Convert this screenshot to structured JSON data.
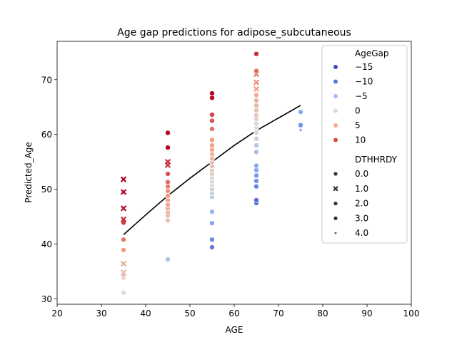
{
  "chart_data": {
    "type": "scatter",
    "title": "Age gap predictions for adipose_subcutaneous",
    "xlabel": "AGE",
    "ylabel": "Predicted_Age",
    "xlim": [
      20,
      100
    ],
    "ylim": [
      29,
      77
    ],
    "xticks": [
      "20",
      "30",
      "40",
      "50",
      "60",
      "70",
      "80",
      "90",
      "100"
    ],
    "yticks": [
      "30",
      "40",
      "50",
      "60",
      "70"
    ],
    "xtick_values": [
      20,
      30,
      40,
      50,
      60,
      70,
      80,
      90,
      100
    ],
    "ytick_values": [
      30,
      40,
      50,
      60,
      70
    ],
    "grid": false,
    "hue_variable": "AgeGap",
    "hue_range": [
      -20,
      12
    ],
    "colormap": "coolwarm",
    "style_variable": "DTHHRDY",
    "legend": {
      "placement": "top-right",
      "hue_title": "AgeGap",
      "hue_entries": [
        {
          "label": "−15",
          "color": "#3b4cc0"
        },
        {
          "label": "−10",
          "color": "#5977e3"
        },
        {
          "label": "−5",
          "color": "#9dbdff"
        },
        {
          "label": "0",
          "color": "#dddcdc"
        },
        {
          "label": "5",
          "color": "#f7a889"
        },
        {
          "label": "10",
          "color": "#d44e41"
        }
      ],
      "style_title": "DTHHRDY",
      "style_entries": [
        {
          "label": "0.0",
          "marker": "circle"
        },
        {
          "label": "1.0",
          "marker": "x"
        },
        {
          "label": "2.0",
          "marker": "circle"
        },
        {
          "label": "3.0",
          "marker": "circle"
        },
        {
          "label": "4.0",
          "marker": "star"
        }
      ]
    },
    "trend_line": {
      "color": "#000000",
      "x": [
        35,
        40,
        45,
        50,
        55,
        60,
        65,
        70,
        75
      ],
      "y": [
        41.7,
        45.3,
        48.8,
        52.0,
        55.0,
        58.0,
        60.7,
        63.0,
        65.3
      ]
    },
    "points": [
      {
        "x": 35,
        "y": 31.1,
        "gap": -3.9,
        "marker": "circle"
      },
      {
        "x": 35,
        "y": 33.9,
        "gap": -1.1,
        "marker": "circle"
      },
      {
        "x": 35,
        "y": 34.3,
        "gap": -0.7,
        "marker": "circle"
      },
      {
        "x": 35,
        "y": 34.8,
        "gap": -0.2,
        "marker": "x"
      },
      {
        "x": 35,
        "y": 36.4,
        "gap": 1.4,
        "marker": "x"
      },
      {
        "x": 35,
        "y": 38.9,
        "gap": 3.9,
        "marker": "circle"
      },
      {
        "x": 35,
        "y": 40.8,
        "gap": 5.8,
        "marker": "circle"
      },
      {
        "x": 35,
        "y": 43.9,
        "gap": 8.9,
        "marker": "circle"
      },
      {
        "x": 35,
        "y": 44.5,
        "gap": 9.5,
        "marker": "x"
      },
      {
        "x": 35,
        "y": 46.5,
        "gap": 11.5,
        "marker": "x"
      },
      {
        "x": 35,
        "y": 49.5,
        "gap": 14.5,
        "marker": "x"
      },
      {
        "x": 35,
        "y": 51.8,
        "gap": 16.8,
        "marker": "x"
      },
      {
        "x": 45,
        "y": 37.2,
        "gap": -7.8,
        "marker": "circle"
      },
      {
        "x": 45,
        "y": 44.3,
        "gap": -0.7,
        "marker": "circle"
      },
      {
        "x": 45,
        "y": 45.2,
        "gap": 0.2,
        "marker": "circle"
      },
      {
        "x": 45,
        "y": 45.8,
        "gap": 0.8,
        "marker": "circle"
      },
      {
        "x": 45,
        "y": 46.5,
        "gap": 1.5,
        "marker": "circle"
      },
      {
        "x": 45,
        "y": 47.2,
        "gap": 2.2,
        "marker": "circle"
      },
      {
        "x": 45,
        "y": 48.0,
        "gap": 3.0,
        "marker": "circle"
      },
      {
        "x": 45,
        "y": 48.8,
        "gap": 3.8,
        "marker": "circle"
      },
      {
        "x": 45,
        "y": 49.7,
        "gap": 4.7,
        "marker": "circle"
      },
      {
        "x": 45,
        "y": 50.5,
        "gap": 5.5,
        "marker": "circle"
      },
      {
        "x": 45,
        "y": 51.3,
        "gap": 6.3,
        "marker": "circle"
      },
      {
        "x": 45,
        "y": 52.8,
        "gap": 7.8,
        "marker": "circle"
      },
      {
        "x": 45,
        "y": 54.4,
        "gap": 9.4,
        "marker": "x"
      },
      {
        "x": 45,
        "y": 55.0,
        "gap": 10.0,
        "marker": "x"
      },
      {
        "x": 45,
        "y": 57.6,
        "gap": 12.6,
        "marker": "circle"
      },
      {
        "x": 45,
        "y": 60.3,
        "gap": 15.3,
        "marker": "circle"
      },
      {
        "x": 55,
        "y": 39.4,
        "gap": -15.6,
        "marker": "circle"
      },
      {
        "x": 55,
        "y": 40.8,
        "gap": -14.2,
        "marker": "circle"
      },
      {
        "x": 55,
        "y": 43.8,
        "gap": -11.2,
        "marker": "circle"
      },
      {
        "x": 55,
        "y": 45.9,
        "gap": -9.1,
        "marker": "circle"
      },
      {
        "x": 55,
        "y": 48.6,
        "gap": -6.4,
        "marker": "circle"
      },
      {
        "x": 55,
        "y": 49.3,
        "gap": -5.7,
        "marker": "circle"
      },
      {
        "x": 55,
        "y": 50.0,
        "gap": -5.0,
        "marker": "circle"
      },
      {
        "x": 55,
        "y": 50.7,
        "gap": -4.3,
        "marker": "circle"
      },
      {
        "x": 55,
        "y": 51.4,
        "gap": -3.6,
        "marker": "circle"
      },
      {
        "x": 55,
        "y": 52.1,
        "gap": -2.9,
        "marker": "circle"
      },
      {
        "x": 55,
        "y": 52.8,
        "gap": -2.2,
        "marker": "circle"
      },
      {
        "x": 55,
        "y": 53.5,
        "gap": -1.5,
        "marker": "circle"
      },
      {
        "x": 55,
        "y": 54.2,
        "gap": -0.8,
        "marker": "circle"
      },
      {
        "x": 55,
        "y": 54.9,
        "gap": -0.1,
        "marker": "circle"
      },
      {
        "x": 55,
        "y": 55.6,
        "gap": 0.6,
        "marker": "circle"
      },
      {
        "x": 55,
        "y": 56.4,
        "gap": 1.4,
        "marker": "circle"
      },
      {
        "x": 55,
        "y": 57.2,
        "gap": 2.2,
        "marker": "circle"
      },
      {
        "x": 55,
        "y": 58.0,
        "gap": 3.0,
        "marker": "circle"
      },
      {
        "x": 55,
        "y": 59.0,
        "gap": 4.0,
        "marker": "circle"
      },
      {
        "x": 55,
        "y": 61.0,
        "gap": 6.0,
        "marker": "circle"
      },
      {
        "x": 55,
        "y": 62.5,
        "gap": 7.5,
        "marker": "circle"
      },
      {
        "x": 55,
        "y": 63.6,
        "gap": 8.6,
        "marker": "circle"
      },
      {
        "x": 55,
        "y": 66.7,
        "gap": 11.7,
        "marker": "circle"
      },
      {
        "x": 55,
        "y": 67.5,
        "gap": 12.5,
        "marker": "circle"
      },
      {
        "x": 65,
        "y": 47.5,
        "gap": -17.5,
        "marker": "circle"
      },
      {
        "x": 65,
        "y": 48.0,
        "gap": -17.0,
        "marker": "circle"
      },
      {
        "x": 65,
        "y": 50.5,
        "gap": -14.5,
        "marker": "circle"
      },
      {
        "x": 65,
        "y": 51.5,
        "gap": -13.5,
        "marker": "circle"
      },
      {
        "x": 65,
        "y": 52.5,
        "gap": -12.5,
        "marker": "circle"
      },
      {
        "x": 65,
        "y": 53.5,
        "gap": -11.5,
        "marker": "circle"
      },
      {
        "x": 65,
        "y": 54.3,
        "gap": -10.7,
        "marker": "circle"
      },
      {
        "x": 65,
        "y": 56.8,
        "gap": -8.2,
        "marker": "circle"
      },
      {
        "x": 65,
        "y": 58.0,
        "gap": -7.0,
        "marker": "circle"
      },
      {
        "x": 65,
        "y": 59.2,
        "gap": -5.8,
        "marker": "circle"
      },
      {
        "x": 65,
        "y": 60.3,
        "gap": -4.7,
        "marker": "circle"
      },
      {
        "x": 65,
        "y": 61.2,
        "gap": -3.8,
        "marker": "circle"
      },
      {
        "x": 65,
        "y": 62.0,
        "gap": -3.0,
        "marker": "circle"
      },
      {
        "x": 65,
        "y": 62.8,
        "gap": -2.2,
        "marker": "circle"
      },
      {
        "x": 65,
        "y": 63.5,
        "gap": -1.5,
        "marker": "circle"
      },
      {
        "x": 65,
        "y": 64.4,
        "gap": -0.6,
        "marker": "circle"
      },
      {
        "x": 65,
        "y": 65.3,
        "gap": 0.3,
        "marker": "circle"
      },
      {
        "x": 65,
        "y": 66.2,
        "gap": 1.2,
        "marker": "circle"
      },
      {
        "x": 65,
        "y": 67.2,
        "gap": 2.2,
        "marker": "circle"
      },
      {
        "x": 65,
        "y": 68.3,
        "gap": 3.3,
        "marker": "x"
      },
      {
        "x": 65,
        "y": 69.5,
        "gap": 4.5,
        "marker": "x"
      },
      {
        "x": 65,
        "y": 71.0,
        "gap": 6.0,
        "marker": "x"
      },
      {
        "x": 65,
        "y": 71.6,
        "gap": 6.6,
        "marker": "circle"
      },
      {
        "x": 65,
        "y": 74.7,
        "gap": 9.7,
        "marker": "circle"
      },
      {
        "x": 75,
        "y": 60.8,
        "gap": -14.2,
        "marker": "star"
      },
      {
        "x": 75,
        "y": 61.7,
        "gap": -13.3,
        "marker": "circle"
      },
      {
        "x": 75,
        "y": 64.1,
        "gap": -10.9,
        "marker": "circle"
      }
    ]
  }
}
